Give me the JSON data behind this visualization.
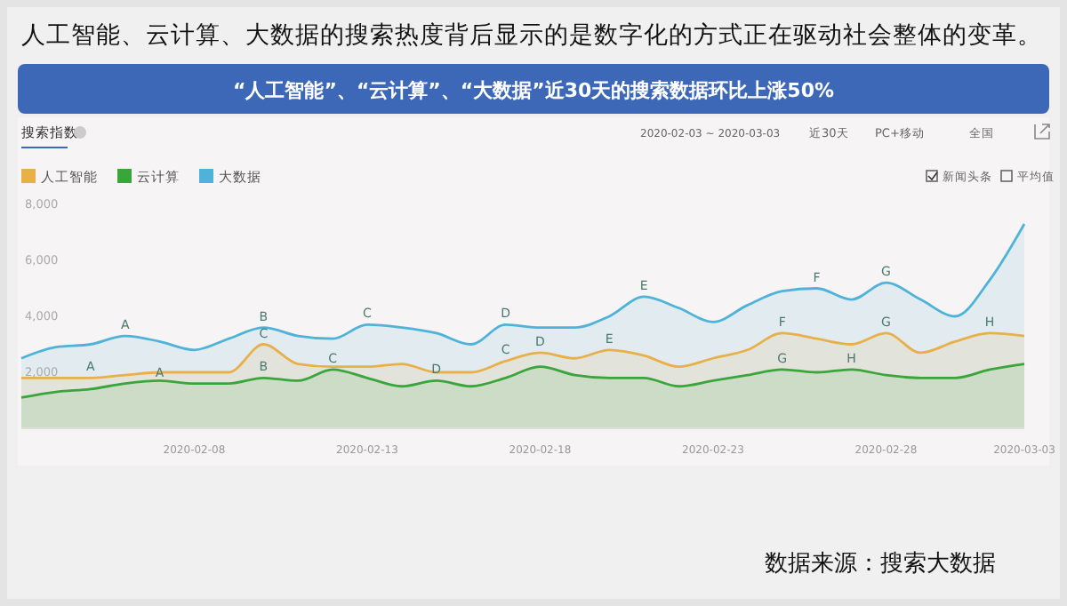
{
  "chart_data": {
    "type": "area",
    "title": "人工智能、云计算、大数据的搜索热度背后显示的是数字化的方式正在驱动社会整体的变革。",
    "subtitle": "“人工智能”、“云计算”、“大数据”近30天的搜索数据环比上涨50%",
    "x": [
      "2020-02-03",
      "2020-02-04",
      "2020-02-05",
      "2020-02-06",
      "2020-02-07",
      "2020-02-08",
      "2020-02-09",
      "2020-02-10",
      "2020-02-11",
      "2020-02-12",
      "2020-02-13",
      "2020-02-14",
      "2020-02-15",
      "2020-02-16",
      "2020-02-17",
      "2020-02-18",
      "2020-02-19",
      "2020-02-20",
      "2020-02-21",
      "2020-02-22",
      "2020-02-23",
      "2020-02-24",
      "2020-02-25",
      "2020-02-26",
      "2020-02-27",
      "2020-02-28",
      "2020-02-29",
      "2020-03-01",
      "2020-03-02",
      "2020-03-03"
    ],
    "series": [
      {
        "name": "人工智能",
        "color": "#e8b04a",
        "values": [
          1800,
          1800,
          1800,
          1900,
          2000,
          2000,
          2000,
          3000,
          2300,
          2200,
          2200,
          2300,
          2000,
          2000,
          2400,
          2700,
          2500,
          2800,
          2600,
          2200,
          2500,
          2800,
          3400,
          3200,
          3000,
          3400,
          2700,
          3100,
          3400,
          3300
        ]
      },
      {
        "name": "云计算",
        "color": "#3aa53a",
        "values": [
          1100,
          1300,
          1400,
          1600,
          1700,
          1600,
          1600,
          1800,
          1700,
          2100,
          1800,
          1500,
          1700,
          1500,
          1800,
          2200,
          1900,
          1800,
          1800,
          1500,
          1700,
          1900,
          2100,
          2000,
          2100,
          1900,
          1800,
          1800,
          2100,
          2300
        ]
      },
      {
        "name": "大数据",
        "color": "#4fb3d9",
        "values": [
          2500,
          2900,
          3000,
          3300,
          3100,
          2800,
          3200,
          3600,
          3300,
          3200,
          3700,
          3600,
          3400,
          3000,
          3700,
          3600,
          3600,
          4000,
          4700,
          4300,
          3800,
          4400,
          4900,
          5000,
          4600,
          5200,
          4600,
          4000,
          5300,
          7300
        ]
      }
    ],
    "xlim": [
      "2020-02-03",
      "2020-03-03"
    ],
    "xticks": [
      "2020-02-08",
      "2020-02-13",
      "2020-02-18",
      "2020-02-23",
      "2020-02-28",
      "2020-03-03"
    ],
    "ylim": [
      0,
      8000
    ],
    "yticks": [
      {
        "value": 2000,
        "label": "2,000"
      },
      {
        "value": 4000,
        "label": "4,000"
      },
      {
        "value": 6000,
        "label": "6,000"
      },
      {
        "value": 8000,
        "label": "8,000"
      }
    ],
    "legend": "top left",
    "grid": false,
    "marker": "none",
    "line_style": "solid",
    "annotations": [
      "搜索指数",
      "2020-02-03 ~ 2020-03-03",
      "近30天",
      "PC+移动",
      "全国",
      "新闻头条",
      "平均值",
      "数据来源：搜索大数据",
      {
        "text": "A",
        "x": "2020-02-06",
        "y": 3300
      },
      {
        "text": "B",
        "x": "2020-02-10",
        "y": 3600
      },
      {
        "text": "C",
        "x": "2020-02-13",
        "y": 3700
      },
      {
        "text": "D",
        "x": "2020-02-17",
        "y": 3700
      },
      {
        "text": "E",
        "x": "2020-02-21",
        "y": 4700
      },
      {
        "text": "F",
        "x": "2020-02-26",
        "y": 5000
      },
      {
        "text": "G",
        "x": "2020-02-28",
        "y": 5200
      },
      {
        "text": "A",
        "x": "2020-02-05",
        "y": 1800
      },
      {
        "text": "C",
        "x": "2020-02-10",
        "y": 3000
      },
      {
        "text": "C",
        "x": "2020-02-17",
        "y": 2400
      },
      {
        "text": "D",
        "x": "2020-02-18",
        "y": 2700
      },
      {
        "text": "E",
        "x": "2020-02-20",
        "y": 2800
      },
      {
        "text": "F",
        "x": "2020-02-25",
        "y": 3400
      },
      {
        "text": "G",
        "x": "2020-02-28",
        "y": 3400
      },
      {
        "text": "H",
        "x": "2020-03-02",
        "y": 3400
      },
      {
        "text": "A",
        "x": "2020-02-07",
        "y": 1600
      },
      {
        "text": "B",
        "x": "2020-02-10",
        "y": 1800
      },
      {
        "text": "C",
        "x": "2020-02-12",
        "y": 2100
      },
      {
        "text": "D",
        "x": "2020-02-15",
        "y": 1700
      },
      {
        "text": "G",
        "x": "2020-02-25",
        "y": 2100
      },
      {
        "text": "H",
        "x": "2020-02-27",
        "y": 2100
      }
    ]
  }
}
